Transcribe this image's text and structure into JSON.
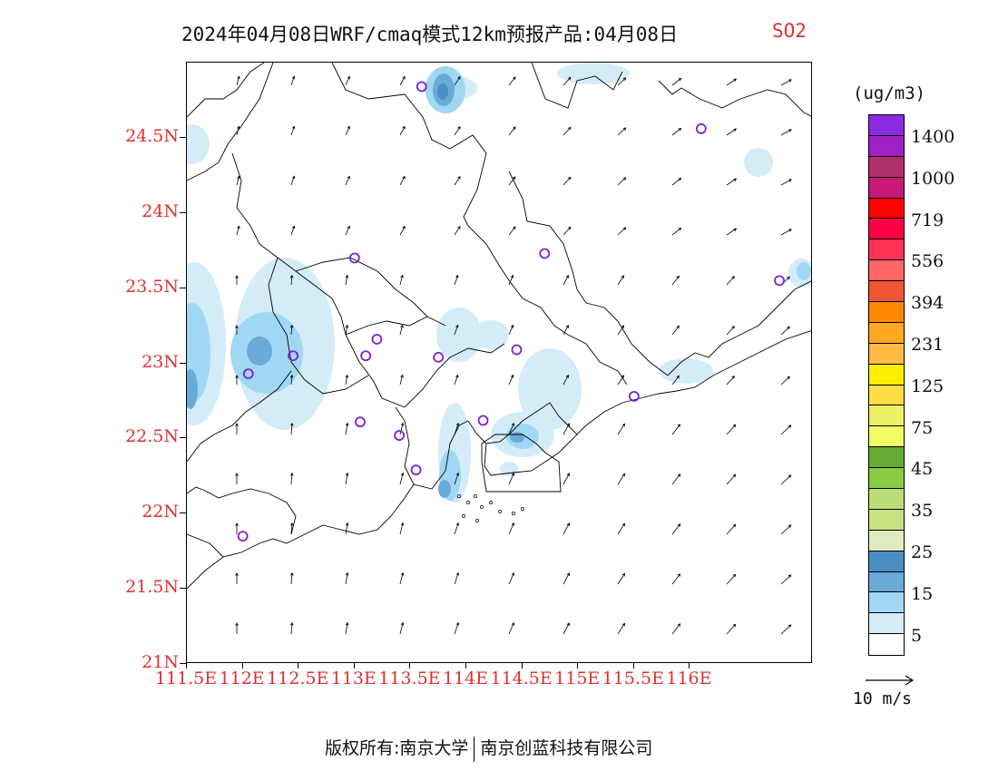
{
  "title": {
    "main": "2024年04月08日WRF/cmaq模式12km预报产品:04月08日",
    "species": "SO2"
  },
  "map": {
    "lon_range": [
      111.5,
      117.1
    ],
    "lat_range": [
      21.0,
      25.0
    ],
    "y_ticks": [
      {
        "lat": 24.5,
        "label": "24.5N"
      },
      {
        "lat": 24.0,
        "label": "24N"
      },
      {
        "lat": 23.5,
        "label": "23.5N"
      },
      {
        "lat": 23.0,
        "label": "23N"
      },
      {
        "lat": 22.5,
        "label": "22.5N"
      },
      {
        "lat": 22.0,
        "label": "22N"
      },
      {
        "lat": 21.5,
        "label": "21.5N"
      },
      {
        "lat": 21.0,
        "label": "21N"
      }
    ],
    "x_ticks": [
      {
        "lon": 111.5,
        "label": "111.5E"
      },
      {
        "lon": 112.0,
        "label": "112E"
      },
      {
        "lon": 112.5,
        "label": "112.5E"
      },
      {
        "lon": 113.0,
        "label": "113E"
      },
      {
        "lon": 113.5,
        "label": "113.5E"
      },
      {
        "lon": 114.0,
        "label": "114E"
      },
      {
        "lon": 114.5,
        "label": "114.5E"
      },
      {
        "lon": 115.0,
        "label": "115E"
      },
      {
        "lon": 115.5,
        "label": "115.5E"
      },
      {
        "lon": 116.0,
        "label": "116E"
      }
    ],
    "stations": [
      {
        "lon": 113.6,
        "lat": 24.84
      },
      {
        "lon": 116.1,
        "lat": 24.56
      },
      {
        "lon": 113.0,
        "lat": 23.7
      },
      {
        "lon": 114.7,
        "lat": 23.73
      },
      {
        "lon": 116.8,
        "lat": 23.55
      },
      {
        "lon": 112.45,
        "lat": 23.05
      },
      {
        "lon": 112.05,
        "lat": 22.93
      },
      {
        "lon": 113.1,
        "lat": 23.05
      },
      {
        "lon": 113.2,
        "lat": 23.16
      },
      {
        "lon": 113.75,
        "lat": 23.04
      },
      {
        "lon": 114.45,
        "lat": 23.09
      },
      {
        "lon": 115.5,
        "lat": 22.78
      },
      {
        "lon": 113.05,
        "lat": 22.61
      },
      {
        "lon": 113.4,
        "lat": 22.52
      },
      {
        "lon": 114.15,
        "lat": 22.62
      },
      {
        "lon": 113.55,
        "lat": 22.29
      },
      {
        "lon": 112.0,
        "lat": 21.85
      }
    ]
  },
  "legend": {
    "unit": "(ug/m3)",
    "colors": [
      "#8a2be2",
      "#a020c8",
      "#b0306a",
      "#c8187a",
      "#ff0000",
      "#ff0044",
      "#ff3355",
      "#ff6666",
      "#ee5533",
      "#ff8800",
      "#ffaa22",
      "#ffbb44",
      "#ffee00",
      "#ffdd44",
      "#eef066",
      "#f0ff66",
      "#66aa33",
      "#88cc44",
      "#bbdd77",
      "#c8e080",
      "#e0ecc0",
      "#4a8ec4",
      "#6aaad8",
      "#a0d8f4",
      "#d4ecf8",
      "#ffffff"
    ],
    "labels": [
      "1400",
      "1000",
      "719",
      "556",
      "394",
      "231",
      "125",
      "75",
      "45",
      "35",
      "25",
      "15",
      "5"
    ]
  },
  "wind_reference": {
    "label": "10 m/s"
  },
  "footer": {
    "left": "版权所有:南京大学",
    "right": "南京创蓝科技有限公司"
  }
}
